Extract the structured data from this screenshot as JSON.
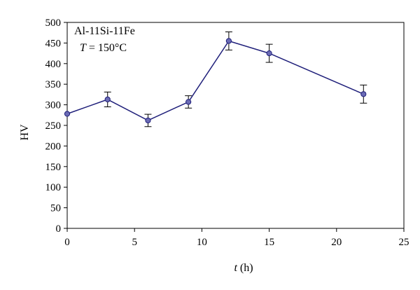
{
  "chart_data": {
    "type": "line",
    "title": "",
    "xlabel_var": "t",
    "xlabel_unit": " (h)",
    "ylabel": "HV",
    "xlim": [
      0,
      25
    ],
    "ylim": [
      0,
      500
    ],
    "xticks": [
      0,
      5,
      10,
      15,
      20,
      25
    ],
    "yticks": [
      0,
      50,
      100,
      150,
      200,
      250,
      300,
      350,
      400,
      450,
      500
    ],
    "grid": false,
    "annotation": {
      "line1": "Al-11Si-11Fe",
      "line2_var": "T",
      "line2_rest": " = 150°C"
    },
    "series": [
      {
        "color": "#1f1f7a",
        "marker_color": "#6b6bb5",
        "x": [
          0,
          3,
          6,
          9,
          12,
          15,
          22
        ],
        "y": [
          278,
          313,
          262,
          307,
          455,
          425,
          326
        ],
        "error": [
          0,
          18,
          15,
          15,
          22,
          22,
          22
        ]
      }
    ]
  }
}
